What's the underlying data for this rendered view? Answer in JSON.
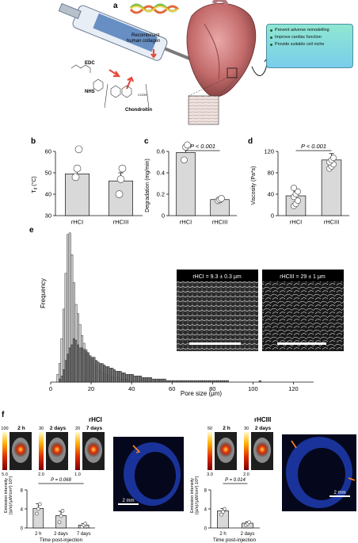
{
  "panels": {
    "a": {
      "letter": "a",
      "labels": {
        "collagen": "Recombinant human collagen",
        "edc": "EDC",
        "nhs": "NHS",
        "chondroitin": "Chondroitin",
        "cooh": "COOH"
      },
      "benefits": [
        "Prevent adverse remodelling",
        "Improve cardiac function",
        "Provide suitable cell niche"
      ]
    },
    "b": {
      "letter": "b",
      "chart_data": {
        "type": "bar",
        "categories": [
          "rHCI",
          "rHCIII"
        ],
        "values": [
          49.5,
          46.2
        ],
        "errors": [
          3.8,
          3.8
        ],
        "points": [
          [
            48,
            52,
            61
          ],
          [
            40,
            47,
            52
          ]
        ],
        "ylabel": "Td (°C)",
        "ylim": [
          30,
          60
        ],
        "yticks": [
          "30",
          "40",
          "50",
          "60"
        ]
      }
    },
    "c": {
      "letter": "c",
      "chart_data": {
        "type": "bar",
        "categories": [
          "rHCI",
          "rHCIII"
        ],
        "values": [
          0.59,
          0.15
        ],
        "errors": [
          0.04,
          0.01
        ],
        "points": [
          [
            0.52,
            0.64,
            0.66
          ],
          [
            0.14,
            0.15,
            0.16
          ]
        ],
        "ylabel": "Degradation (mg/min)",
        "ylim": [
          0,
          0.6
        ],
        "yticks": [
          "0",
          "0.2",
          "0.4",
          "0.6"
        ],
        "annotation": "P < 0.001"
      }
    },
    "d": {
      "letter": "d",
      "chart_data": {
        "type": "bar",
        "categories": [
          "rHCI",
          "rHCIII"
        ],
        "values": [
          37,
          104
        ],
        "errors": [
          8,
          12
        ],
        "points": [
          [
            18,
            22,
            28,
            35,
            40,
            45,
            52
          ],
          [
            88,
            92,
            96,
            100,
            104,
            108
          ]
        ],
        "ylabel": "Viscosity (Pa*s)",
        "ylim": [
          0,
          120
        ],
        "yticks": [
          "0",
          "40",
          "80",
          "120"
        ],
        "annotation": "P < 0.001"
      }
    },
    "e": {
      "letter": "e",
      "chart_data": {
        "type": "bar",
        "xlabel": "Pore size (μm)",
        "ylabel": "Frequency",
        "xlim": [
          0,
          130
        ],
        "xticks": [
          "0",
          "20",
          "40",
          "60",
          "80",
          "100",
          "120"
        ],
        "bin_width": 1,
        "series": [
          {
            "values": [
              0,
              0,
              0,
              5,
              12,
              28,
              47,
              70,
              95,
              96,
              82,
              64,
              50,
              44,
              37,
              30,
              25,
              21,
              18,
              15,
              14,
              11,
              10,
              8,
              7,
              6,
              6,
              5,
              5,
              4,
              4,
              3,
              3,
              3,
              2,
              2,
              2,
              2,
              1,
              1,
              1,
              1,
              1,
              1,
              1,
              1,
              1,
              1,
              1,
              1,
              1,
              1,
              1,
              1,
              1,
              0,
              0,
              0,
              0,
              0
            ]
          },
          {
            "values": [
              0,
              0,
              0,
              0,
              2,
              4,
              8,
              14,
              18,
              22,
              24,
              28,
              27,
              24,
              22,
              22,
              21,
              20,
              19,
              17,
              16,
              16,
              14,
              13,
              12,
              12,
              11,
              10,
              10,
              9,
              9,
              8,
              7,
              7,
              7,
              6,
              6,
              5,
              5,
              5,
              5,
              4,
              4,
              4,
              4,
              3,
              3,
              3,
              3,
              3,
              2,
              2,
              2,
              2,
              2,
              2,
              2,
              1,
              1,
              1,
              1,
              1,
              1,
              1,
              1,
              1,
              1,
              1,
              1,
              1,
              1,
              1,
              1,
              1,
              1,
              1,
              1,
              1,
              1,
              1,
              1,
              1,
              1,
              1,
              1,
              1,
              1,
              1,
              0,
              0,
              0,
              0,
              0,
              0,
              0,
              0,
              0,
              0,
              0,
              0,
              0,
              0,
              0,
              1,
              0,
              0,
              0,
              0,
              0,
              0
            ]
          }
        ]
      },
      "insets": [
        "rHCI = 9.3 ± 0.3 μm",
        "rHCIII = 29 ± 1 μm"
      ]
    },
    "f": {
      "letter": "f",
      "left": {
        "title": "rHCI",
        "timepoints": [
          "2 h",
          "2 days",
          "7 days"
        ],
        "scale_tops": [
          "100",
          "30",
          "20"
        ],
        "scale_bottoms": [
          "5.0",
          "2.0",
          "1.0"
        ],
        "scale_bar": "2 mm",
        "chart_data": {
          "type": "bar",
          "categories": [
            "2 h",
            "2 days",
            "7 days"
          ],
          "values": [
            4.1,
            2.6,
            0.6
          ],
          "errors": [
            1.0,
            0.9,
            0.3
          ],
          "points": [
            [
              3,
              4,
              5
            ],
            [
              1.2,
              2.5,
              3.6
            ],
            [
              0.3,
              0.6,
              0.9
            ]
          ],
          "ylim": [
            0,
            8
          ],
          "yticks": [
            "0",
            "4",
            "8"
          ],
          "ylabel": "Emission intensity ((p/s)/(μW/cm²) 10⁸)",
          "xlabel": "Time post-injection",
          "annotation": "P = 0.068"
        }
      },
      "right": {
        "title": "rHCIII",
        "timepoints": [
          "2 h",
          "2 days"
        ],
        "scale_tops": [
          "50",
          "30"
        ],
        "scale_bottoms": [
          "3.0",
          "2.0"
        ],
        "scale_bar": "2 mm",
        "chart_data": {
          "type": "bar",
          "categories": [
            "2 h",
            "2 days"
          ],
          "values": [
            3.6,
            1.0
          ],
          "errors": [
            0.5,
            0.3
          ],
          "points": [
            [
              2.8,
              3.4,
              4.0
            ],
            [
              0.6,
              0.9,
              1.2
            ]
          ],
          "ylim": [
            0,
            8
          ],
          "yticks": [
            "0",
            "4",
            "8"
          ],
          "ylabel": "Emission intensity ((p/s)/(μW/cm²) 10⁸)",
          "xlabel": "Time post-injection",
          "annotation": "P = 0.014"
        }
      }
    }
  }
}
